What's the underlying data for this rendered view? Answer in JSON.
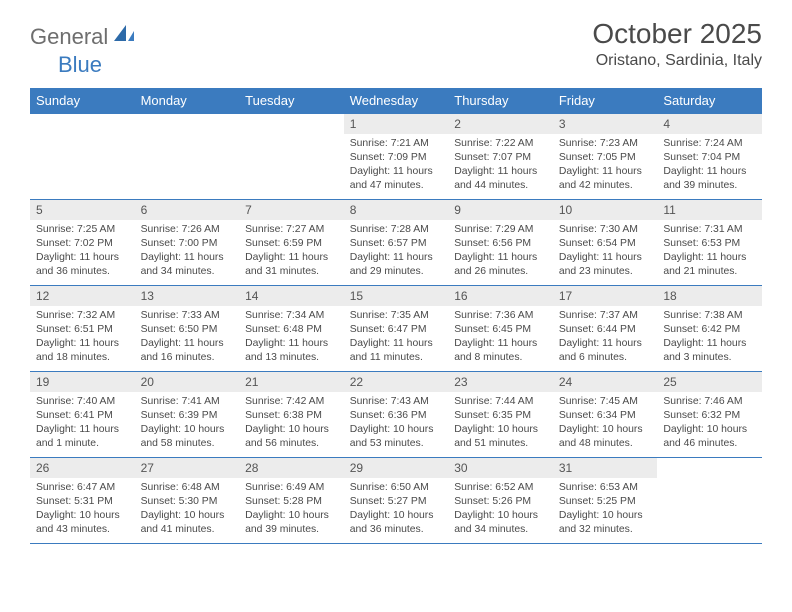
{
  "brand": {
    "text1": "General",
    "text2": "Blue"
  },
  "title": "October 2025",
  "location": "Oristano, Sardinia, Italy",
  "colors": {
    "header_bg": "#3b7bbf",
    "header_text": "#ffffff",
    "daynum_bg": "#ececec",
    "border": "#3b7bbf",
    "text": "#4a4a4a",
    "logo_gray": "#6e6e6e",
    "logo_blue": "#3b7bbf",
    "background": "#ffffff"
  },
  "typography": {
    "title_fontsize": 28,
    "location_fontsize": 16,
    "header_fontsize": 13,
    "daynum_fontsize": 12,
    "body_fontsize": 10.4
  },
  "calendar": {
    "type": "table",
    "columns": [
      "Sunday",
      "Monday",
      "Tuesday",
      "Wednesday",
      "Thursday",
      "Friday",
      "Saturday"
    ],
    "weeks": [
      [
        null,
        null,
        null,
        {
          "n": "1",
          "sunrise": "7:21 AM",
          "sunset": "7:09 PM",
          "daylight": "11 hours and 47 minutes."
        },
        {
          "n": "2",
          "sunrise": "7:22 AM",
          "sunset": "7:07 PM",
          "daylight": "11 hours and 44 minutes."
        },
        {
          "n": "3",
          "sunrise": "7:23 AM",
          "sunset": "7:05 PM",
          "daylight": "11 hours and 42 minutes."
        },
        {
          "n": "4",
          "sunrise": "7:24 AM",
          "sunset": "7:04 PM",
          "daylight": "11 hours and 39 minutes."
        }
      ],
      [
        {
          "n": "5",
          "sunrise": "7:25 AM",
          "sunset": "7:02 PM",
          "daylight": "11 hours and 36 minutes."
        },
        {
          "n": "6",
          "sunrise": "7:26 AM",
          "sunset": "7:00 PM",
          "daylight": "11 hours and 34 minutes."
        },
        {
          "n": "7",
          "sunrise": "7:27 AM",
          "sunset": "6:59 PM",
          "daylight": "11 hours and 31 minutes."
        },
        {
          "n": "8",
          "sunrise": "7:28 AM",
          "sunset": "6:57 PM",
          "daylight": "11 hours and 29 minutes."
        },
        {
          "n": "9",
          "sunrise": "7:29 AM",
          "sunset": "6:56 PM",
          "daylight": "11 hours and 26 minutes."
        },
        {
          "n": "10",
          "sunrise": "7:30 AM",
          "sunset": "6:54 PM",
          "daylight": "11 hours and 23 minutes."
        },
        {
          "n": "11",
          "sunrise": "7:31 AM",
          "sunset": "6:53 PM",
          "daylight": "11 hours and 21 minutes."
        }
      ],
      [
        {
          "n": "12",
          "sunrise": "7:32 AM",
          "sunset": "6:51 PM",
          "daylight": "11 hours and 18 minutes."
        },
        {
          "n": "13",
          "sunrise": "7:33 AM",
          "sunset": "6:50 PM",
          "daylight": "11 hours and 16 minutes."
        },
        {
          "n": "14",
          "sunrise": "7:34 AM",
          "sunset": "6:48 PM",
          "daylight": "11 hours and 13 minutes."
        },
        {
          "n": "15",
          "sunrise": "7:35 AM",
          "sunset": "6:47 PM",
          "daylight": "11 hours and 11 minutes."
        },
        {
          "n": "16",
          "sunrise": "7:36 AM",
          "sunset": "6:45 PM",
          "daylight": "11 hours and 8 minutes."
        },
        {
          "n": "17",
          "sunrise": "7:37 AM",
          "sunset": "6:44 PM",
          "daylight": "11 hours and 6 minutes."
        },
        {
          "n": "18",
          "sunrise": "7:38 AM",
          "sunset": "6:42 PM",
          "daylight": "11 hours and 3 minutes."
        }
      ],
      [
        {
          "n": "19",
          "sunrise": "7:40 AM",
          "sunset": "6:41 PM",
          "daylight": "11 hours and 1 minute."
        },
        {
          "n": "20",
          "sunrise": "7:41 AM",
          "sunset": "6:39 PM",
          "daylight": "10 hours and 58 minutes."
        },
        {
          "n": "21",
          "sunrise": "7:42 AM",
          "sunset": "6:38 PM",
          "daylight": "10 hours and 56 minutes."
        },
        {
          "n": "22",
          "sunrise": "7:43 AM",
          "sunset": "6:36 PM",
          "daylight": "10 hours and 53 minutes."
        },
        {
          "n": "23",
          "sunrise": "7:44 AM",
          "sunset": "6:35 PM",
          "daylight": "10 hours and 51 minutes."
        },
        {
          "n": "24",
          "sunrise": "7:45 AM",
          "sunset": "6:34 PM",
          "daylight": "10 hours and 48 minutes."
        },
        {
          "n": "25",
          "sunrise": "7:46 AM",
          "sunset": "6:32 PM",
          "daylight": "10 hours and 46 minutes."
        }
      ],
      [
        {
          "n": "26",
          "sunrise": "6:47 AM",
          "sunset": "5:31 PM",
          "daylight": "10 hours and 43 minutes."
        },
        {
          "n": "27",
          "sunrise": "6:48 AM",
          "sunset": "5:30 PM",
          "daylight": "10 hours and 41 minutes."
        },
        {
          "n": "28",
          "sunrise": "6:49 AM",
          "sunset": "5:28 PM",
          "daylight": "10 hours and 39 minutes."
        },
        {
          "n": "29",
          "sunrise": "6:50 AM",
          "sunset": "5:27 PM",
          "daylight": "10 hours and 36 minutes."
        },
        {
          "n": "30",
          "sunrise": "6:52 AM",
          "sunset": "5:26 PM",
          "daylight": "10 hours and 34 minutes."
        },
        {
          "n": "31",
          "sunrise": "6:53 AM",
          "sunset": "5:25 PM",
          "daylight": "10 hours and 32 minutes."
        },
        null
      ]
    ]
  },
  "labels": {
    "sunrise": "Sunrise:",
    "sunset": "Sunset:",
    "daylight": "Daylight:"
  }
}
